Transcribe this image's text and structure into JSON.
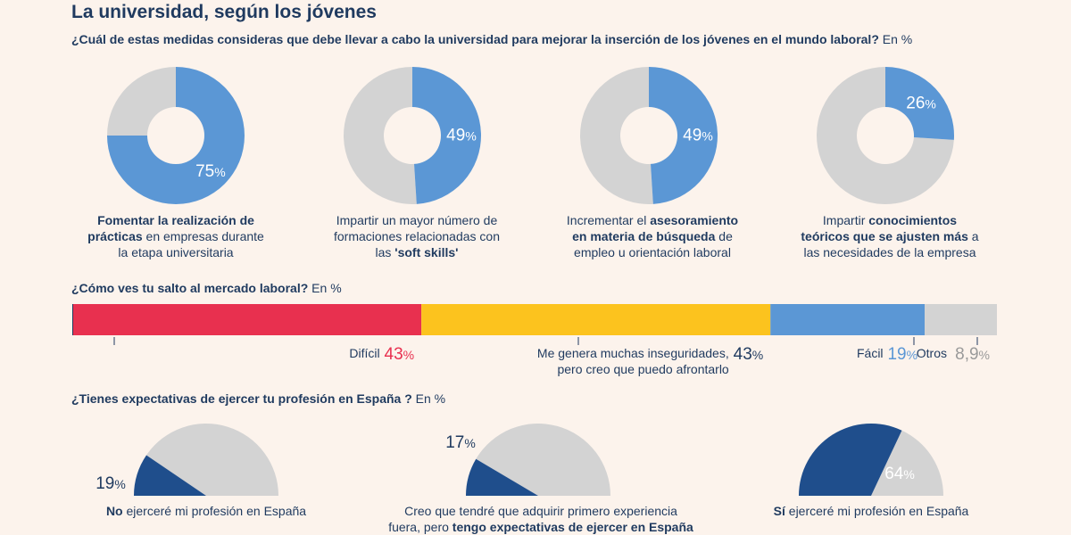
{
  "title": "La universidad, según los jóvenes",
  "q1": {
    "text": "¿Cuál de estas medidas consideras que debe llevar a cabo la universidad para mejorar la inserción de los jóvenes en el mundo laboral?",
    "unit": " En %"
  },
  "q2": {
    "text": "¿Cómo ves tu salto al mercado laboral?",
    "unit": " En %"
  },
  "q3": {
    "text": "¿Tienes expectativas de ejercer tu profesión en España ?",
    "unit": " En %"
  },
  "colors": {
    "blue": "#5b97d5",
    "grey": "#d3d3d3",
    "dark_blue": "#1f4e8c",
    "red": "#e8304f",
    "yellow": "#fcc31e",
    "text": "#1f3a5f"
  },
  "chart_data": [
    {
      "type": "pie",
      "title": "",
      "charts": [
        {
          "value": 75,
          "label_text": "75%",
          "caption": [
            "Fomentar la realización de prácticas",
            " en empresas durante la etapa universitaria"
          ]
        },
        {
          "value": 49,
          "label_text": "49%",
          "caption": [
            "Impartir un mayor número de formaciones relacionadas con las ",
            "'soft skills'"
          ]
        },
        {
          "value": 49,
          "label_text": "49%",
          "caption": [
            "Incrementar el ",
            "asesoramiento en materia de búsqueda",
            " de empleo u orientación laboral"
          ]
        },
        {
          "value": 26,
          "label_text": "26%",
          "caption": [
            "Impartir ",
            "conocimientos teóricos que se ajusten más",
            " a las necesidades de la empresa"
          ]
        }
      ]
    },
    {
      "type": "bar",
      "stacked": true,
      "categories": [
        "Difícil",
        "Me genera muchas inseguridades, pero creo que puedo afrontarlo",
        "Fácil",
        "Otros"
      ],
      "values": [
        43,
        43,
        19,
        8.9
      ],
      "value_labels": [
        "43%",
        "43%",
        "19%",
        "8,9%"
      ],
      "label_lines": [
        [
          "Difícil"
        ],
        [
          "Me genera muchas inseguridades,",
          "pero creo que puedo afrontarlo"
        ],
        [
          "Fácil"
        ],
        [
          "Otros"
        ]
      ]
    },
    {
      "type": "pie",
      "half": true,
      "charts": [
        {
          "value": 19,
          "label_text": "19%",
          "caption": [
            "No",
            " ejerceré mi profesión en España"
          ]
        },
        {
          "value": 17,
          "label_text": "17%",
          "caption": [
            "Creo que tendré que adquirir primero experiencia fuera, pero ",
            "tengo expectativas de ejercer en España"
          ]
        },
        {
          "value": 64,
          "label_text": "64%",
          "caption": [
            "Sí",
            " ejerceré mi profesión en España"
          ]
        }
      ]
    }
  ]
}
